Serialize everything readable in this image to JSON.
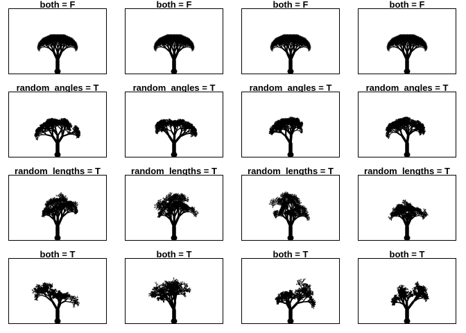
{
  "colors": {
    "tree": "#000000",
    "frame": "#000000",
    "background": "#ffffff"
  },
  "rows": [
    {
      "label": "both = F",
      "variant": "regular"
    },
    {
      "label": "random_angles = T",
      "variant": "angles"
    },
    {
      "label": "random_lengths = T",
      "variant": "lengths"
    },
    {
      "label": "both = T",
      "variant": "both"
    }
  ],
  "columns": 4
}
